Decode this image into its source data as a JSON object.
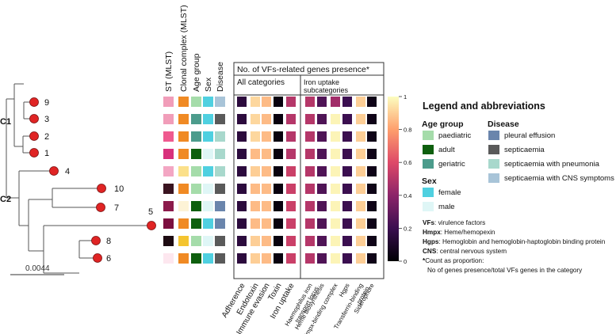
{
  "scale_bar_label": "0.0044",
  "tree_labels": {
    "clade1": "C1",
    "clade2": "C2"
  },
  "tips": [
    "9",
    "3",
    "2",
    "1",
    "4",
    "10",
    "7",
    "5",
    "8",
    "6"
  ],
  "meta_columns": [
    "ST (MLST)",
    "Clonal complex (MLST)",
    "Age group",
    "Sex",
    "Disease"
  ],
  "vf_box_title": "No. of VFs-related genes presence*",
  "all_categories_label": "All categories",
  "iron_subcategories_label": [
    "Iron uptake",
    "subcategories"
  ],
  "all_category_columns": [
    "Adherence",
    "Endotoxin",
    "Immune evasion",
    "Toxin",
    "Iron uptake"
  ],
  "iron_columns": [
    [
      "Haemophilus iron",
      "transport locus"
    ],
    [
      "Heme biosynthesis"
    ],
    [
      "Hmpx-binding complex"
    ],
    [
      "Hgps"
    ],
    [
      "Transferrin-binding",
      "protein"
    ],
    [
      "Siderophore"
    ]
  ],
  "colorbar_ticks": [
    "0",
    "0.2",
    "0.4",
    "0.6",
    "0.8",
    "1"
  ],
  "colors": {
    "ST": [
      "#f19db9",
      "#f19db9",
      "#ef5a8f",
      "#d8317c",
      "#f3a6c3",
      "#3a1420",
      "#8c1b4b",
      "#7c0f3f",
      "#1d0b12",
      "#fde7ef"
    ],
    "CC": [
      "#f08a24",
      "#f08a24",
      "#f08a24",
      "#f08a24",
      "#fbe08a",
      "#f08a24",
      "#fdf3d6",
      "#f08a24",
      "#f4c430",
      "#f08a24"
    ],
    "Age": [
      "#a5dcaa",
      "#4c9c8c",
      "#4c9c8c",
      "#0e5f0e",
      "#a5dcaa",
      "#a5dcaa",
      "#0e5f0e",
      "#0e5f0e",
      "#a5dcaa",
      "#0e5f0e"
    ],
    "Sex": [
      "#4fd0e0",
      "#4fd0e0",
      "#4fd0e0",
      "#dff6f6",
      "#4fd0e0",
      "#dff6f6",
      "#dff6f6",
      "#4fd0e0",
      "#dff6f6",
      "#4fd0e0"
    ],
    "Disease": [
      "#a8c4d8",
      "#5a5a5a",
      "#a8d8cc",
      "#a8d8cc",
      "#a8d8cc",
      "#5a5a5a",
      "#6a85ac",
      "#6a85ac",
      "#5a5a5a",
      "#5a5a5a"
    ]
  },
  "heatmap_values": [
    [
      0.15,
      0.92,
      0.86,
      0.03,
      0.5,
      0.5,
      0.25,
      0.45,
      0.2,
      0.9,
      0.05
    ],
    [
      0.15,
      0.92,
      0.86,
      0.03,
      0.5,
      0.5,
      0.25,
      0.98,
      0.2,
      0.9,
      0.05
    ],
    [
      0.15,
      0.92,
      0.86,
      0.03,
      0.5,
      0.5,
      0.25,
      0.98,
      0.2,
      0.9,
      0.05
    ],
    [
      0.15,
      0.86,
      0.86,
      0.03,
      0.5,
      0.5,
      0.25,
      0.98,
      0.2,
      0.9,
      0.05
    ],
    [
      0.15,
      0.9,
      0.86,
      0.03,
      0.55,
      0.5,
      0.25,
      0.98,
      0.2,
      0.9,
      0.05
    ],
    [
      0.15,
      0.86,
      0.86,
      0.03,
      0.55,
      0.5,
      0.25,
      0.98,
      0.2,
      0.9,
      0.05
    ],
    [
      0.15,
      0.86,
      0.86,
      0.03,
      0.55,
      0.5,
      0.25,
      0.98,
      0.2,
      0.9,
      0.05
    ],
    [
      0.15,
      0.86,
      0.86,
      0.03,
      0.55,
      0.5,
      0.25,
      0.98,
      0.2,
      0.9,
      0.05
    ],
    [
      0.15,
      0.9,
      0.86,
      0.03,
      0.55,
      0.5,
      0.25,
      0.98,
      0.2,
      0.9,
      0.05
    ],
    [
      0.15,
      0.9,
      0.86,
      0.03,
      0.55,
      0.5,
      0.25,
      0.98,
      0.2,
      0.9,
      0.05
    ]
  ],
  "legend": {
    "title": "Legend and abbreviations",
    "age_title": "Age group",
    "age_items": [
      {
        "label": "paediatric",
        "color": "#a5dcaa"
      },
      {
        "label": "adult",
        "color": "#0e5f0e"
      },
      {
        "label": "geriatric",
        "color": "#4c9c8c"
      }
    ],
    "disease_title": "Disease",
    "disease_items": [
      {
        "label": "pleural effusion",
        "color": "#6a85ac"
      },
      {
        "label": "septicaemia",
        "color": "#5a5a5a"
      },
      {
        "label": "septicaemia with pneumonia",
        "color": "#a8d8cc"
      },
      {
        "label": "septicaemia with CNS symptoms",
        "color": "#a8c4d8"
      }
    ],
    "sex_title": "Sex",
    "sex_items": [
      {
        "label": "female",
        "color": "#4fd0e0"
      },
      {
        "label": "male",
        "color": "#dff6f6"
      }
    ],
    "abbreviations": [
      {
        "key": "VFs",
        "text": ": virulence factors"
      },
      {
        "key": "Hmpx",
        "text": ": Heme/hemopexin"
      },
      {
        "key": "Hgps",
        "text": ": Hemoglobin and hemoglobin-haptoglobin binding protein"
      },
      {
        "key": "CNS",
        "text": ": central nervous system"
      },
      {
        "key": "*",
        "text": "Count as proportion:"
      }
    ],
    "footnote_line2": "No of genes presence/total VFs genes in the category"
  }
}
